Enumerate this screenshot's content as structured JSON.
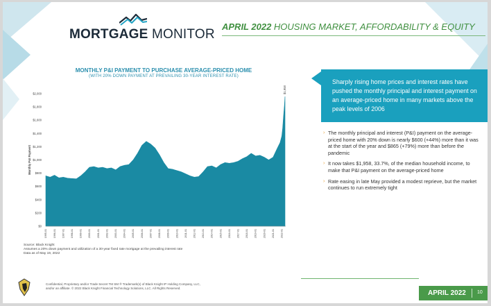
{
  "header": {
    "logo_text_bold": "MORTGAGE",
    "logo_text_light": "MONITOR",
    "title_strong": "APRIL 2022",
    "title_rest": "HOUSING MARKET, AFFORDABILITY & EQUITY"
  },
  "chart_data": {
    "type": "area",
    "title": "MONTHLY P&I PAYMENT TO PURCHASE AVERAGE-PRICED HOME",
    "subtitle": "(WITH 20% DOWN PAYMENT AT PREVAILING 30-YEAR INTEREST RATE)",
    "ylabel": "Monthly P&I Payment",
    "xlabel": "",
    "ylim": [
      0,
      2000
    ],
    "y_ticks": [
      "$0",
      "$200",
      "$400",
      "$600",
      "$800",
      "$1,000",
      "$1,200",
      "$1,400",
      "$1,600",
      "$1,800",
      "$2,000"
    ],
    "x_ticks": [
      "1995-01",
      "1996-01",
      "1997-01",
      "1998-01",
      "1999-01",
      "2000-01",
      "2001-01",
      "2002-01",
      "2003-01",
      "2004-01",
      "2005-01",
      "2006-01",
      "2007-01",
      "2008-01",
      "2009-01",
      "2010-01",
      "2011-01",
      "2012-01",
      "2013-01",
      "2014-01",
      "2015-01",
      "2016-01",
      "2017-01",
      "2018-01",
      "2019-01",
      "2020-01",
      "2021-01",
      "2022-01"
    ],
    "end_label": "$1,958",
    "color": "#1a8aa3",
    "series": [
      {
        "x": [
          1995.0,
          1995.5,
          1996.0,
          1996.5,
          1997.0,
          1997.5,
          1998.0,
          1998.5,
          1999.0,
          1999.5,
          2000.0,
          2000.5,
          2001.0,
          2001.5,
          2002.0,
          2002.5,
          2003.0,
          2003.5,
          2004.0,
          2004.5,
          2005.0,
          2005.5,
          2006.0,
          2006.5,
          2007.0,
          2007.5,
          2008.0,
          2008.5,
          2009.0,
          2009.5,
          2010.0,
          2010.5,
          2011.0,
          2011.5,
          2012.0,
          2012.5,
          2013.0,
          2013.5,
          2014.0,
          2014.5,
          2015.0,
          2015.5,
          2016.0,
          2016.5,
          2017.0,
          2017.5,
          2018.0,
          2018.5,
          2019.0,
          2019.5,
          2020.0,
          2020.5,
          2021.0,
          2021.5,
          2021.8,
          2022.0,
          2022.1,
          2022.2,
          2022.3,
          2022.37
        ],
        "values": [
          760,
          740,
          770,
          730,
          740,
          725,
          720,
          715,
          760,
          820,
          890,
          900,
          880,
          890,
          870,
          880,
          850,
          900,
          920,
          930,
          1000,
          1100,
          1220,
          1280,
          1240,
          1180,
          1080,
          960,
          870,
          860,
          840,
          820,
          790,
          760,
          740,
          750,
          820,
          900,
          910,
          880,
          930,
          960,
          950,
          960,
          980,
          1020,
          1050,
          1100,
          1060,
          1070,
          1040,
          1000,
          1040,
          1180,
          1260,
          1360,
          1480,
          1660,
          1820,
          1958
        ]
      }
    ],
    "notes": [
      "Source: Black Knight",
      "Assumes a 20% down payment and utilization of a 30-year fixed rate mortgage at the prevailing interest rate",
      "Data as of May 19, 2022"
    ]
  },
  "callout": {
    "text": "Sharply rising home prices and interest rates have pushed the monthly principal and interest payment on an average-priced home in many markets above the peak levels of 2006"
  },
  "bullets": [
    "The monthly principal and interest (P&I) payment on the average-priced home with 20% down is nearly $600 (+44%) more than it was at the start of the year and $865 (+79%) more than before the pandemic",
    "It now takes $1,958, 33.7%, of the median household income, to make that P&I payment on the average-priced home",
    "Rate easing in late May provided a modest reprieve, but the market continues to run extremely tight"
  ],
  "footer": {
    "confidential_1": "Confidential, Proprietary and/or Trade Secret TM SM ® Trademark(s) of Black Knight IP Holding Company, LLC,",
    "confidential_2": "and/or an affiliate. © 2022 Black Knight Financial Technology Solutions, LLC. All Rights Reserved.",
    "month_label": "APRIL 2022",
    "page": "10"
  }
}
